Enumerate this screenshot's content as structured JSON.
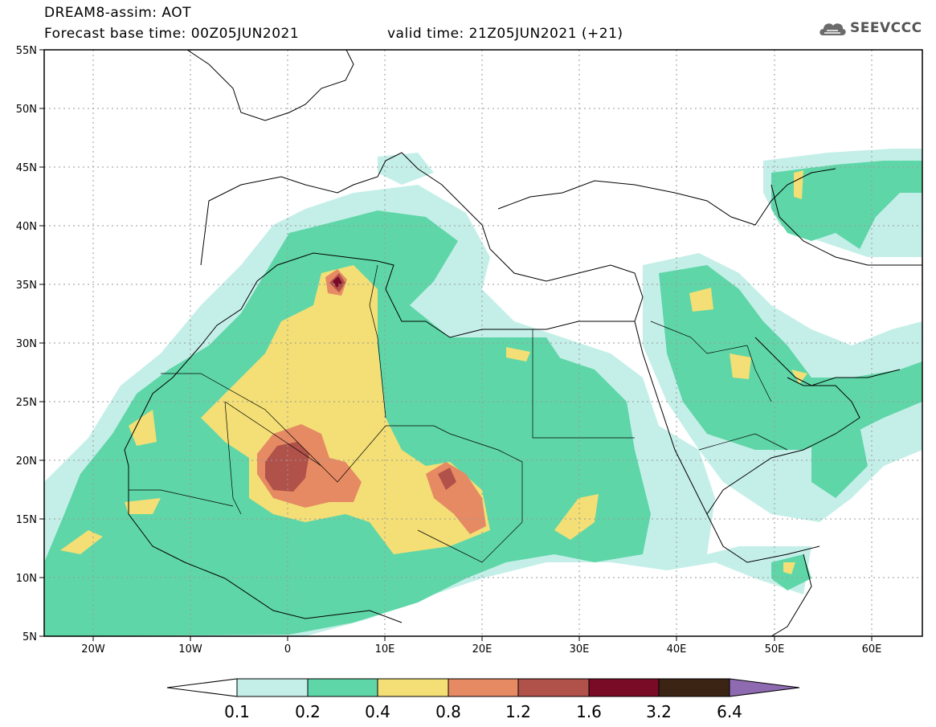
{
  "header": {
    "line1": "DREAM8-assim: AOT",
    "line2": "Forecast base time: 00Z05JUN2021",
    "line3": "valid time: 21Z05JUN2021 (+21)"
  },
  "logo": {
    "text": "SEEVCCC",
    "icon": "cloud-logo-icon"
  },
  "map": {
    "lon_range": [
      -25,
      65
    ],
    "lat_range": [
      5,
      55
    ],
    "lat_ticks": [
      "5N",
      "10N",
      "15N",
      "20N",
      "25N",
      "30N",
      "35N",
      "40N",
      "45N",
      "50N",
      "55N"
    ],
    "lon_ticks": [
      "20W",
      "10W",
      "0",
      "10E",
      "20E",
      "30E",
      "40E",
      "50E",
      "60E"
    ]
  },
  "colorbar": {
    "labels": [
      "0.1",
      "0.2",
      "0.4",
      "0.8",
      "1.2",
      "1.6",
      "3.2",
      "6.4"
    ],
    "colors": [
      "#ffffff",
      "#c4efe8",
      "#5fd6a8",
      "#f3df75",
      "#e68a64",
      "#b0514a",
      "#7a0b27",
      "#3b2414",
      "#8e6ab0"
    ]
  }
}
